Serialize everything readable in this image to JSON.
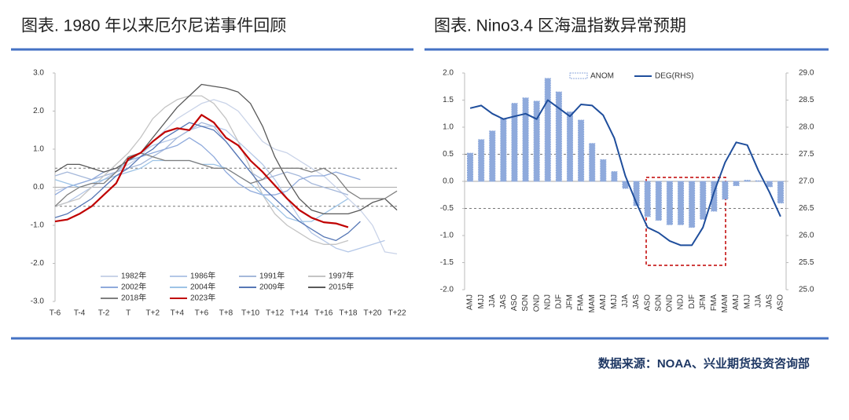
{
  "chart_data": [
    {
      "type": "line",
      "title": "图表. 1980 年以来厄尔尼诺事件回顾",
      "categories": [
        "T-6",
        null,
        "T-4",
        null,
        "T-2",
        null,
        "T",
        null,
        "T+2",
        null,
        "T+4",
        null,
        "T+6",
        null,
        "T+8",
        null,
        "T+10",
        null,
        "T+12",
        null,
        "T+14",
        null,
        "T+16",
        null,
        "T+18",
        null,
        "T+20",
        null,
        "T+22"
      ],
      "ylim": [
        -3,
        3
      ],
      "yticks": [
        {
          "value": -3,
          "label": "-3.0"
        },
        {
          "value": -2,
          "label": "-2.0"
        },
        {
          "value": -1,
          "label": "-1.0"
        },
        {
          "value": 0,
          "label": "0.0"
        },
        {
          "value": 1,
          "label": "1.0"
        },
        {
          "value": 2,
          "label": "2.0"
        },
        {
          "value": 3,
          "label": "3.0"
        }
      ],
      "reference_lines": [
        0.5,
        -0.5
      ],
      "legend": "bottom",
      "series": [
        {
          "name": "1982年",
          "color": "#c9d3e8",
          "values": [
            -0.1,
            0,
            0.1,
            0.2,
            0.3,
            0.4,
            0.6,
            0.8,
            1.2,
            1.5,
            1.8,
            2.0,
            2.2,
            2.3,
            2.2,
            2.0,
            1.6,
            1.2,
            1.0,
            0.9,
            0.7,
            0.5,
            0.3,
            0.0,
            -0.3,
            -0.6,
            -1.0,
            -1.7,
            -1.75
          ]
        },
        {
          "name": "1986年",
          "color": "#b4c7e7",
          "values": [
            -0.5,
            -0.4,
            -0.2,
            0,
            0.2,
            0.4,
            0.7,
            0.9,
            1.1,
            1.2,
            1.3,
            1.5,
            1.6,
            1.6,
            1.5,
            1.2,
            0.9,
            0.6,
            0.2,
            -0.3,
            -0.8,
            -1.2,
            -1.4,
            -1.6,
            -1.7,
            -1.6,
            -1.5,
            -1.4,
            null
          ]
        },
        {
          "name": "1991年",
          "color": "#a5b8da",
          "values": [
            0.3,
            0.4,
            0.3,
            0.2,
            0.3,
            0.4,
            0.5,
            0.6,
            0.8,
            1.0,
            1.3,
            1.5,
            1.7,
            1.6,
            1.2,
            0.8,
            0.4,
            0.2,
            0.3,
            0.4,
            0.3,
            0.1,
            0,
            -0.1,
            -0.2,
            null,
            null,
            null,
            null
          ]
        },
        {
          "name": "1997年",
          "color": "#c4c4c4",
          "values": [
            -0.5,
            -0.4,
            -0.3,
            0,
            0.3,
            0.6,
            0.9,
            1.3,
            1.8,
            2.1,
            2.3,
            2.4,
            2.4,
            2.2,
            1.8,
            1.2,
            0.5,
            -0.2,
            -0.7,
            -1.0,
            -1.2,
            -1.4,
            -1.5,
            -1.5,
            -1.4,
            null,
            null,
            null,
            null
          ]
        },
        {
          "name": "2002年",
          "color": "#8faadc",
          "values": [
            -0.2,
            0,
            0.1,
            0.2,
            0.4,
            0.5,
            0.7,
            0.8,
            0.9,
            1.0,
            1.1,
            1.3,
            1.1,
            0.8,
            0.4,
            0.1,
            -0.1,
            -0.2,
            -0.2,
            -0.1,
            0.2,
            0.3,
            0.3,
            0.4,
            0.3,
            0.2,
            null,
            null,
            null
          ]
        },
        {
          "name": "2004年",
          "color": "#9dc3e6",
          "values": [
            0.2,
            0.1,
            0,
            0.1,
            0.2,
            0.3,
            0.4,
            0.5,
            0.7,
            0.7,
            0.7,
            0.7,
            0.6,
            0.6,
            0.5,
            0.3,
            0.1,
            -0.2,
            -0.5,
            -0.8,
            -0.9,
            -0.9,
            -0.7,
            -0.5,
            -0.3,
            null,
            null,
            null,
            null
          ]
        },
        {
          "name": "2009年",
          "color": "#5677b5",
          "values": [
            -0.8,
            -0.7,
            -0.5,
            -0.3,
            0,
            0.3,
            0.5,
            0.8,
            1.0,
            1.3,
            1.5,
            1.7,
            1.6,
            1.5,
            1.2,
            0.8,
            0.4,
            0,
            -0.3,
            -0.6,
            -0.9,
            -1.1,
            -1.3,
            -1.4,
            -1.2,
            -0.9,
            null,
            null,
            null
          ]
        },
        {
          "name": "2015年",
          "color": "#595959",
          "values": [
            0.4,
            0.6,
            0.6,
            0.5,
            0.4,
            0.5,
            0.7,
            0.9,
            1.3,
            1.7,
            2.1,
            2.4,
            2.7,
            2.65,
            2.6,
            2.5,
            2.2,
            1.6,
            0.8,
            0.2,
            -0.3,
            -0.6,
            -0.7,
            -0.7,
            -0.7,
            -0.6,
            -0.4,
            -0.3,
            -0.6
          ]
        },
        {
          "name": "2018年",
          "color": "#7f7f7f",
          "values": [
            -0.5,
            -0.2,
            0.0,
            0.1,
            0.1,
            0.4,
            0.8,
            0.9,
            0.8,
            0.7,
            0.7,
            0.7,
            0.6,
            0.5,
            0.5,
            0.3,
            0.1,
            0.2,
            0.5,
            0.5,
            0.5,
            0.4,
            0.5,
            0.3,
            -0.1,
            -0.3,
            -0.3,
            -0.3,
            -0.1
          ]
        },
        {
          "name": "2023年",
          "color": "#c00000",
          "values": [
            -0.9,
            -0.85,
            -0.7,
            -0.5,
            -0.2,
            0.1,
            0.75,
            0.9,
            1.2,
            1.45,
            1.55,
            1.5,
            1.9,
            1.7,
            1.3,
            1.1,
            0.7,
            0.4,
            0.05,
            -0.3,
            -0.6,
            -0.8,
            -0.92,
            -0.95,
            -1.05,
            null,
            null,
            null,
            null
          ]
        }
      ]
    },
    {
      "type": "bar_line",
      "title": "图表. Nino3.4 区海温指数异常预期",
      "categories": [
        "AMJ",
        "MJJ",
        "JJA",
        "JAS",
        "ASO",
        "SON",
        "OND",
        "NDJ",
        "DJF",
        "JFM",
        "FMA",
        "MAM",
        "AMJ",
        "MJJ",
        "JJA",
        "JAS",
        "ASO",
        "SON",
        "OND",
        "NDJ",
        "DJF",
        "JFM",
        "FMA",
        "MAM",
        "AMJ",
        "MJJ",
        "JJA",
        "JAS",
        "ASO"
      ],
      "ylim": [
        -2,
        2
      ],
      "yticks": [
        {
          "value": -2,
          "label": "-2.0"
        },
        {
          "value": -1.5,
          "label": "-1.5"
        },
        {
          "value": -1,
          "label": "-1.0"
        },
        {
          "value": -0.5,
          "label": "-0.5"
        },
        {
          "value": 0,
          "label": "0.0"
        },
        {
          "value": 0.5,
          "label": "0.5"
        },
        {
          "value": 1,
          "label": "1.0"
        },
        {
          "value": 1.5,
          "label": "1.5"
        },
        {
          "value": 2,
          "label": "2.0"
        }
      ],
      "y2lim": [
        25,
        29
      ],
      "y2ticks": [
        {
          "value": 25,
          "label": "25.0"
        },
        {
          "value": 25.5,
          "label": "25.5"
        },
        {
          "value": 26,
          "label": "26.0"
        },
        {
          "value": 26.5,
          "label": "26.5"
        },
        {
          "value": 27,
          "label": "27.0"
        },
        {
          "value": 27.5,
          "label": "27.5"
        },
        {
          "value": 28,
          "label": "28.0"
        },
        {
          "value": 28.5,
          "label": "28.5"
        },
        {
          "value": 29,
          "label": "29.0"
        }
      ],
      "reference_lines": [
        0.5,
        -0.5
      ],
      "legend": "top",
      "series": [
        {
          "name": "ANOM",
          "type": "bar",
          "color": "#8faadc",
          "values": [
            0.52,
            0.77,
            0.93,
            1.15,
            1.44,
            1.54,
            1.48,
            1.9,
            1.65,
            1.28,
            1.13,
            0.7,
            0.4,
            0.18,
            -0.13,
            -0.45,
            -0.65,
            -0.72,
            -0.8,
            -0.8,
            -0.85,
            -0.7,
            -0.55,
            -0.33,
            -0.08,
            0.02,
            0.01,
            -0.1,
            -0.4
          ]
        },
        {
          "name": "DEG(RHS)",
          "type": "line",
          "axis": "y2",
          "color": "#1f4e9c",
          "values": [
            28.35,
            28.4,
            28.25,
            28.15,
            28.2,
            28.25,
            28.15,
            28.5,
            28.35,
            28.2,
            28.42,
            28.4,
            28.22,
            27.8,
            27.1,
            26.6,
            26.15,
            26.05,
            25.9,
            25.82,
            25.82,
            26.15,
            26.8,
            27.35,
            27.72,
            27.67,
            27.2,
            26.8,
            26.35
          ]
        }
      ]
    }
  ],
  "source": "数据来源：NOAA、兴业期货投资咨询部"
}
